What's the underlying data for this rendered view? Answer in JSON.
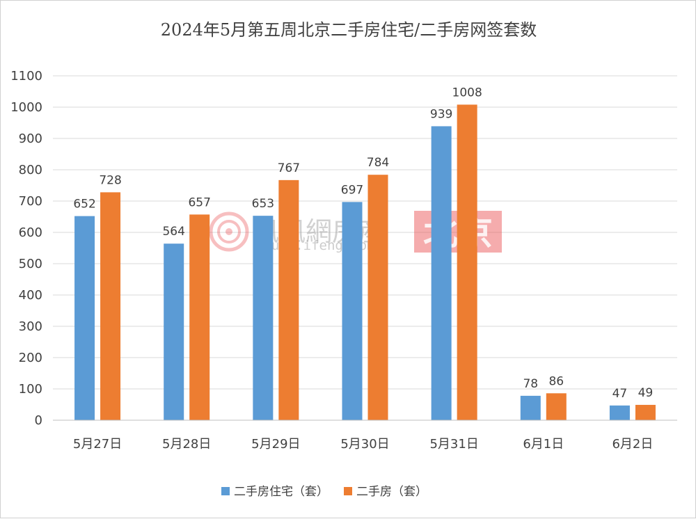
{
  "chart_data": {
    "type": "bar",
    "title": "2024年5月第五周北京二手房住宅/二手房网签套数",
    "categories": [
      "5月27日",
      "5月28日",
      "5月29日",
      "5月30日",
      "5月31日",
      "6月1日",
      "6月2日"
    ],
    "series": [
      {
        "name": "二手房住宅（套）",
        "color": "#5b9bd5",
        "values": [
          652,
          564,
          653,
          697,
          939,
          78,
          47
        ]
      },
      {
        "name": "二手房（套）",
        "color": "#ed7d31",
        "values": [
          728,
          657,
          767,
          784,
          1008,
          86,
          49
        ]
      }
    ],
    "ylim": [
      0,
      1100
    ],
    "ytick_step": 100,
    "grid": true,
    "legend_position": "bottom",
    "xlabel": "",
    "ylabel": ""
  },
  "watermark": {
    "brand": "凤凰網房産",
    "domain": "house.ifeng.com",
    "city": "北京",
    "city_badge_color": "#e8484a"
  }
}
